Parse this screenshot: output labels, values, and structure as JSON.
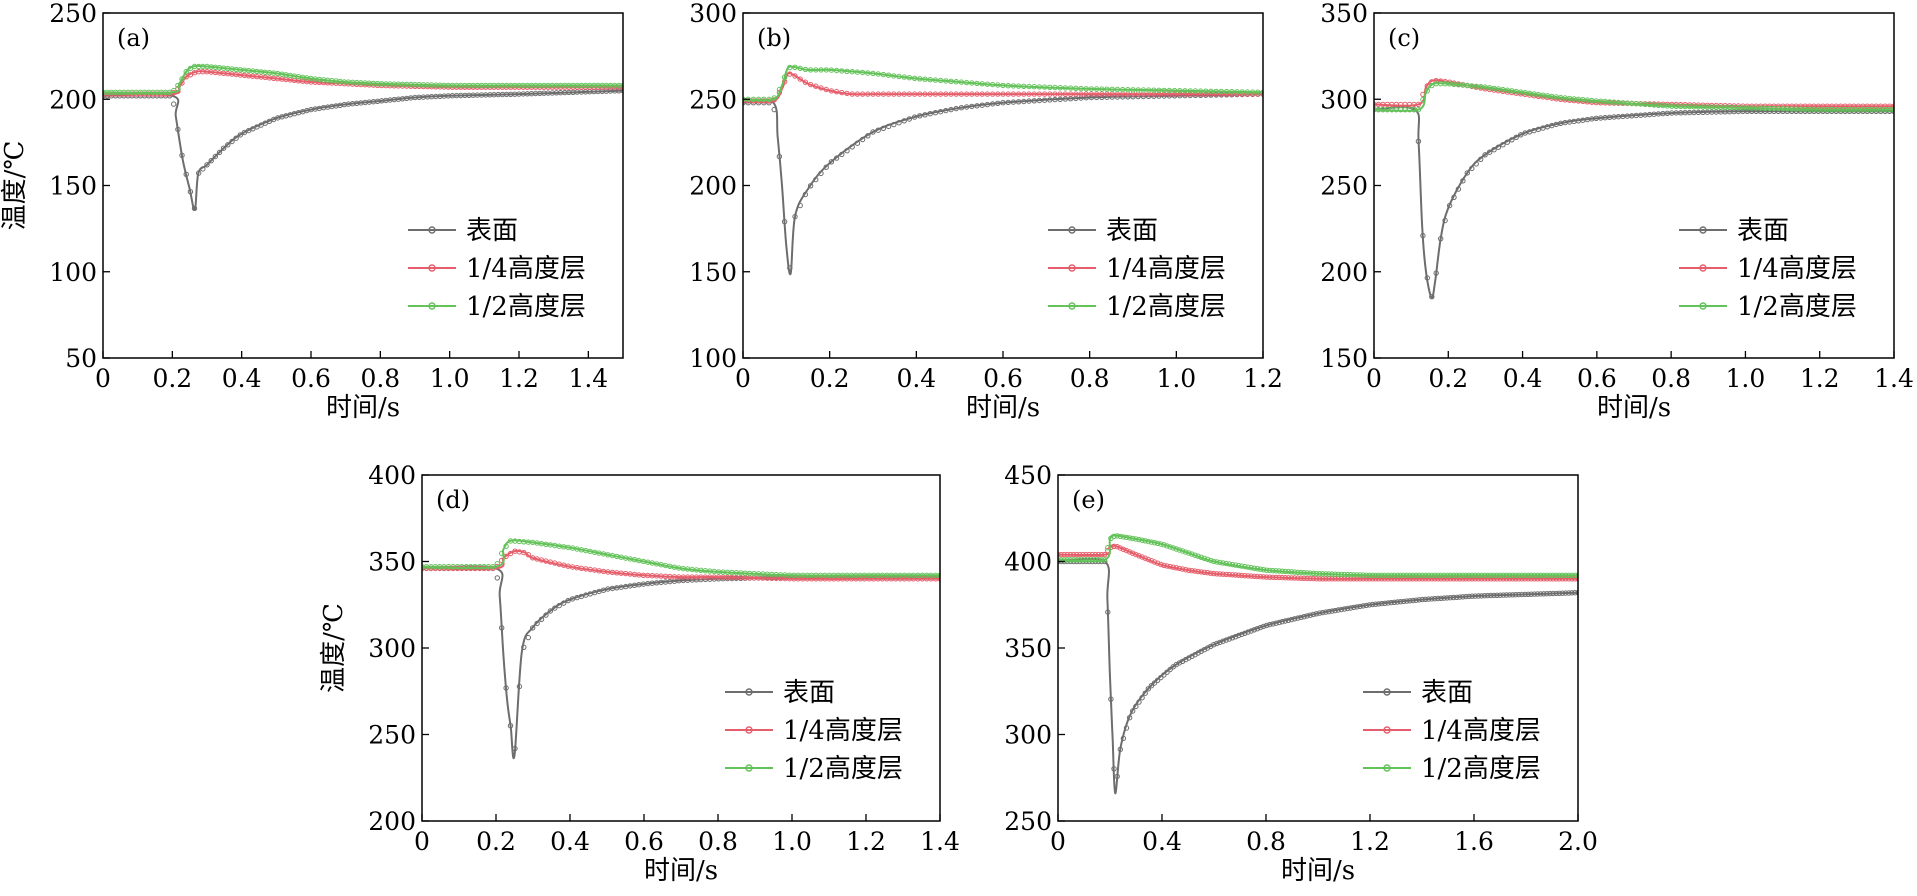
{
  "figure": {
    "series_names": [
      "表面",
      "1/4高度层",
      "1/2高度层"
    ],
    "series_colors": [
      "#6d6d6d",
      "#e65e6b",
      "#63c259"
    ]
  },
  "chart_data": [
    {
      "type": "line",
      "panel": "(a)",
      "xlabel": "时间/s",
      "ylabel": "温度/℃",
      "xlim": [
        0,
        1.5
      ],
      "ylim": [
        50,
        250
      ],
      "xticks": [
        0,
        0.2,
        0.4,
        0.6,
        0.8,
        1.0,
        1.2,
        1.4
      ],
      "xtick_labels": [
        "0",
        "0.2",
        "0.4",
        "0.6",
        "0.8",
        "1.0",
        "1.2",
        "1.4"
      ],
      "yticks": [
        50,
        100,
        150,
        200,
        250
      ],
      "ytick_labels": [
        "50",
        "100",
        "150",
        "200",
        "250"
      ],
      "legend": [
        "表面",
        "1/4高度层",
        "1/2高度层"
      ],
      "series": [
        {
          "name": "表面",
          "x": [
            0,
            0.2,
            0.21,
            0.23,
            0.25,
            0.265,
            0.275,
            0.3,
            0.35,
            0.4,
            0.5,
            0.6,
            0.7,
            0.8,
            0.9,
            1.0,
            1.2,
            1.5
          ],
          "y": [
            202,
            202,
            190,
            165,
            148,
            136,
            157,
            162,
            172,
            180,
            189,
            194,
            197,
            199,
            201,
            202,
            203,
            205
          ]
        },
        {
          "name": "1/4高度层",
          "x": [
            0,
            0.2,
            0.22,
            0.24,
            0.27,
            0.3,
            0.4,
            0.5,
            0.6,
            0.7,
            0.8,
            1.0,
            1.2,
            1.5
          ],
          "y": [
            203,
            203,
            207,
            213,
            216,
            216,
            214,
            212,
            210,
            209,
            208,
            207,
            207,
            207
          ]
        },
        {
          "name": "1/2高度层",
          "x": [
            0,
            0.2,
            0.22,
            0.24,
            0.26,
            0.3,
            0.4,
            0.5,
            0.6,
            0.7,
            0.8,
            1.0,
            1.2,
            1.5
          ],
          "y": [
            204,
            204,
            209,
            216,
            219,
            219,
            217,
            215,
            212,
            210,
            209,
            208,
            208,
            208
          ]
        }
      ]
    },
    {
      "type": "line",
      "panel": "(b)",
      "xlabel": "时间/s",
      "ylabel": "",
      "xlim": [
        0,
        1.2
      ],
      "ylim": [
        100,
        300
      ],
      "xticks": [
        0,
        0.2,
        0.4,
        0.6,
        0.8,
        1.0,
        1.2
      ],
      "xtick_labels": [
        "0",
        "0.2",
        "0.4",
        "0.6",
        "0.8",
        "1.0",
        "1.2"
      ],
      "yticks": [
        100,
        150,
        200,
        250,
        300
      ],
      "ytick_labels": [
        "100",
        "150",
        "200",
        "250",
        "300"
      ],
      "legend": [
        "表面",
        "1/4高度层",
        "1/2高度层"
      ],
      "series": [
        {
          "name": "表面",
          "x": [
            0,
            0.07,
            0.08,
            0.09,
            0.1,
            0.11,
            0.12,
            0.15,
            0.2,
            0.3,
            0.4,
            0.5,
            0.6,
            0.8,
            1.0,
            1.2
          ],
          "y": [
            248,
            248,
            228,
            200,
            165,
            149,
            182,
            198,
            213,
            231,
            240,
            245,
            248,
            251,
            252,
            253
          ]
        },
        {
          "name": "1/4高度层",
          "x": [
            0,
            0.07,
            0.09,
            0.1,
            0.11,
            0.15,
            0.2,
            0.25,
            0.3,
            0.4,
            0.6,
            0.8,
            1.0,
            1.2
          ],
          "y": [
            249,
            249,
            256,
            263,
            265,
            259,
            255,
            253,
            253,
            253,
            253,
            253,
            253,
            253
          ]
        },
        {
          "name": "1/2高度层",
          "x": [
            0,
            0.07,
            0.09,
            0.1,
            0.11,
            0.15,
            0.2,
            0.3,
            0.4,
            0.5,
            0.6,
            0.8,
            1.0,
            1.2
          ],
          "y": [
            250,
            250,
            258,
            266,
            269,
            267,
            267,
            265,
            262,
            260,
            258,
            256,
            255,
            254
          ]
        }
      ]
    },
    {
      "type": "line",
      "panel": "(c)",
      "xlabel": "时间/s",
      "ylabel": "",
      "xlim": [
        0,
        1.4
      ],
      "ylim": [
        150,
        350
      ],
      "xticks": [
        0,
        0.2,
        0.4,
        0.6,
        0.8,
        1.0,
        1.2,
        1.4
      ],
      "xtick_labels": [
        "0",
        "0.2",
        "0.4",
        "0.6",
        "0.8",
        "1.0",
        "1.2",
        "1.4"
      ],
      "yticks": [
        150,
        200,
        250,
        300,
        350
      ],
      "ytick_labels": [
        "150",
        "200",
        "250",
        "300",
        "350"
      ],
      "legend": [
        "表面",
        "1/4高度层",
        "1/2高度层"
      ],
      "series": [
        {
          "name": "表面",
          "x": [
            0,
            0.11,
            0.12,
            0.13,
            0.14,
            0.155,
            0.165,
            0.18,
            0.2,
            0.25,
            0.3,
            0.4,
            0.5,
            0.6,
            0.8,
            1.0,
            1.2,
            1.4
          ],
          "y": [
            294,
            294,
            275,
            225,
            200,
            185,
            195,
            220,
            237,
            257,
            268,
            280,
            286,
            289,
            292,
            293,
            293,
            293
          ]
        },
        {
          "name": "1/4高度层",
          "x": [
            0,
            0.12,
            0.14,
            0.16,
            0.2,
            0.25,
            0.3,
            0.4,
            0.5,
            0.6,
            0.8,
            1.0,
            1.2,
            1.4
          ],
          "y": [
            297,
            297,
            307,
            311,
            310,
            308,
            306,
            303,
            300,
            298,
            297,
            296,
            296,
            296
          ]
        },
        {
          "name": "1/2高度层",
          "x": [
            0,
            0.12,
            0.14,
            0.16,
            0.2,
            0.25,
            0.3,
            0.4,
            0.5,
            0.6,
            0.8,
            1.0,
            1.2,
            1.4
          ],
          "y": [
            294,
            294,
            304,
            309,
            309,
            308,
            307,
            304,
            301,
            299,
            296,
            295,
            294,
            294
          ]
        }
      ]
    },
    {
      "type": "line",
      "panel": "(d)",
      "xlabel": "时间/s",
      "ylabel": "温度/℃",
      "xlim": [
        0,
        1.4
      ],
      "ylim": [
        200,
        400
      ],
      "xticks": [
        0,
        0.2,
        0.4,
        0.6,
        0.8,
        1.0,
        1.2,
        1.4
      ],
      "xtick_labels": [
        "0",
        "0.2",
        "0.4",
        "0.6",
        "0.8",
        "1.0",
        "1.2",
        "1.4"
      ],
      "yticks": [
        200,
        250,
        300,
        350,
        400
      ],
      "ytick_labels": [
        "200",
        "250",
        "300",
        "350",
        "400"
      ],
      "legend": [
        "表面",
        "1/4高度层",
        "1/2高度层"
      ],
      "series": [
        {
          "name": "表面",
          "x": [
            0,
            0.2,
            0.21,
            0.22,
            0.23,
            0.24,
            0.25,
            0.27,
            0.3,
            0.35,
            0.4,
            0.5,
            0.6,
            0.7,
            0.8,
            1.0,
            1.2,
            1.4
          ],
          "y": [
            346,
            346,
            330,
            296,
            270,
            254,
            238,
            298,
            312,
            322,
            328,
            334,
            337,
            339,
            340,
            341,
            341,
            341
          ]
        },
        {
          "name": "1/4高度层",
          "x": [
            0,
            0.2,
            0.22,
            0.25,
            0.28,
            0.3,
            0.4,
            0.5,
            0.6,
            0.7,
            0.8,
            1.0,
            1.2,
            1.4
          ],
          "y": [
            346,
            346,
            352,
            356,
            355,
            352,
            347,
            344,
            342,
            341,
            341,
            340,
            340,
            340
          ]
        },
        {
          "name": "1/2高度层",
          "x": [
            0,
            0.2,
            0.22,
            0.24,
            0.3,
            0.4,
            0.5,
            0.6,
            0.7,
            0.8,
            1.0,
            1.2,
            1.4
          ],
          "y": [
            347,
            347,
            357,
            362,
            361,
            358,
            354,
            350,
            346,
            344,
            342,
            342,
            342
          ]
        }
      ]
    },
    {
      "type": "line",
      "panel": "(e)",
      "xlabel": "时间/s",
      "ylabel": "",
      "xlim": [
        0,
        2.0
      ],
      "ylim": [
        250,
        450
      ],
      "xticks": [
        0,
        0.4,
        0.8,
        1.2,
        1.6,
        2.0
      ],
      "xtick_labels": [
        "0",
        "0.4",
        "0.8",
        "1.2",
        "1.6",
        "2.0"
      ],
      "yticks": [
        250,
        300,
        350,
        400,
        450
      ],
      "ytick_labels": [
        "250",
        "300",
        "350",
        "400",
        "450"
      ],
      "legend": [
        "表面",
        "1/4高度层",
        "1/2高度层"
      ],
      "series": [
        {
          "name": "表面",
          "x": [
            0,
            0.18,
            0.19,
            0.2,
            0.21,
            0.22,
            0.24,
            0.28,
            0.35,
            0.45,
            0.6,
            0.8,
            1.0,
            1.2,
            1.4,
            1.6,
            1.8,
            2.0
          ],
          "y": [
            400,
            400,
            378,
            333,
            298,
            266,
            292,
            312,
            327,
            340,
            352,
            363,
            370,
            375,
            378,
            380,
            381,
            382
          ]
        },
        {
          "name": "1/4高度层",
          "x": [
            0,
            0.18,
            0.2,
            0.22,
            0.3,
            0.4,
            0.5,
            0.6,
            0.8,
            1.0,
            1.2,
            1.6,
            2.0
          ],
          "y": [
            404,
            404,
            408,
            409,
            404,
            398,
            395,
            393,
            391,
            390,
            390,
            390,
            390
          ]
        },
        {
          "name": "1/2高度层",
          "x": [
            0,
            0.18,
            0.2,
            0.22,
            0.3,
            0.4,
            0.5,
            0.6,
            0.8,
            1.0,
            1.2,
            1.6,
            2.0
          ],
          "y": [
            401,
            401,
            413,
            415,
            413,
            410,
            405,
            400,
            395,
            393,
            392,
            392,
            392
          ]
        }
      ]
    }
  ]
}
